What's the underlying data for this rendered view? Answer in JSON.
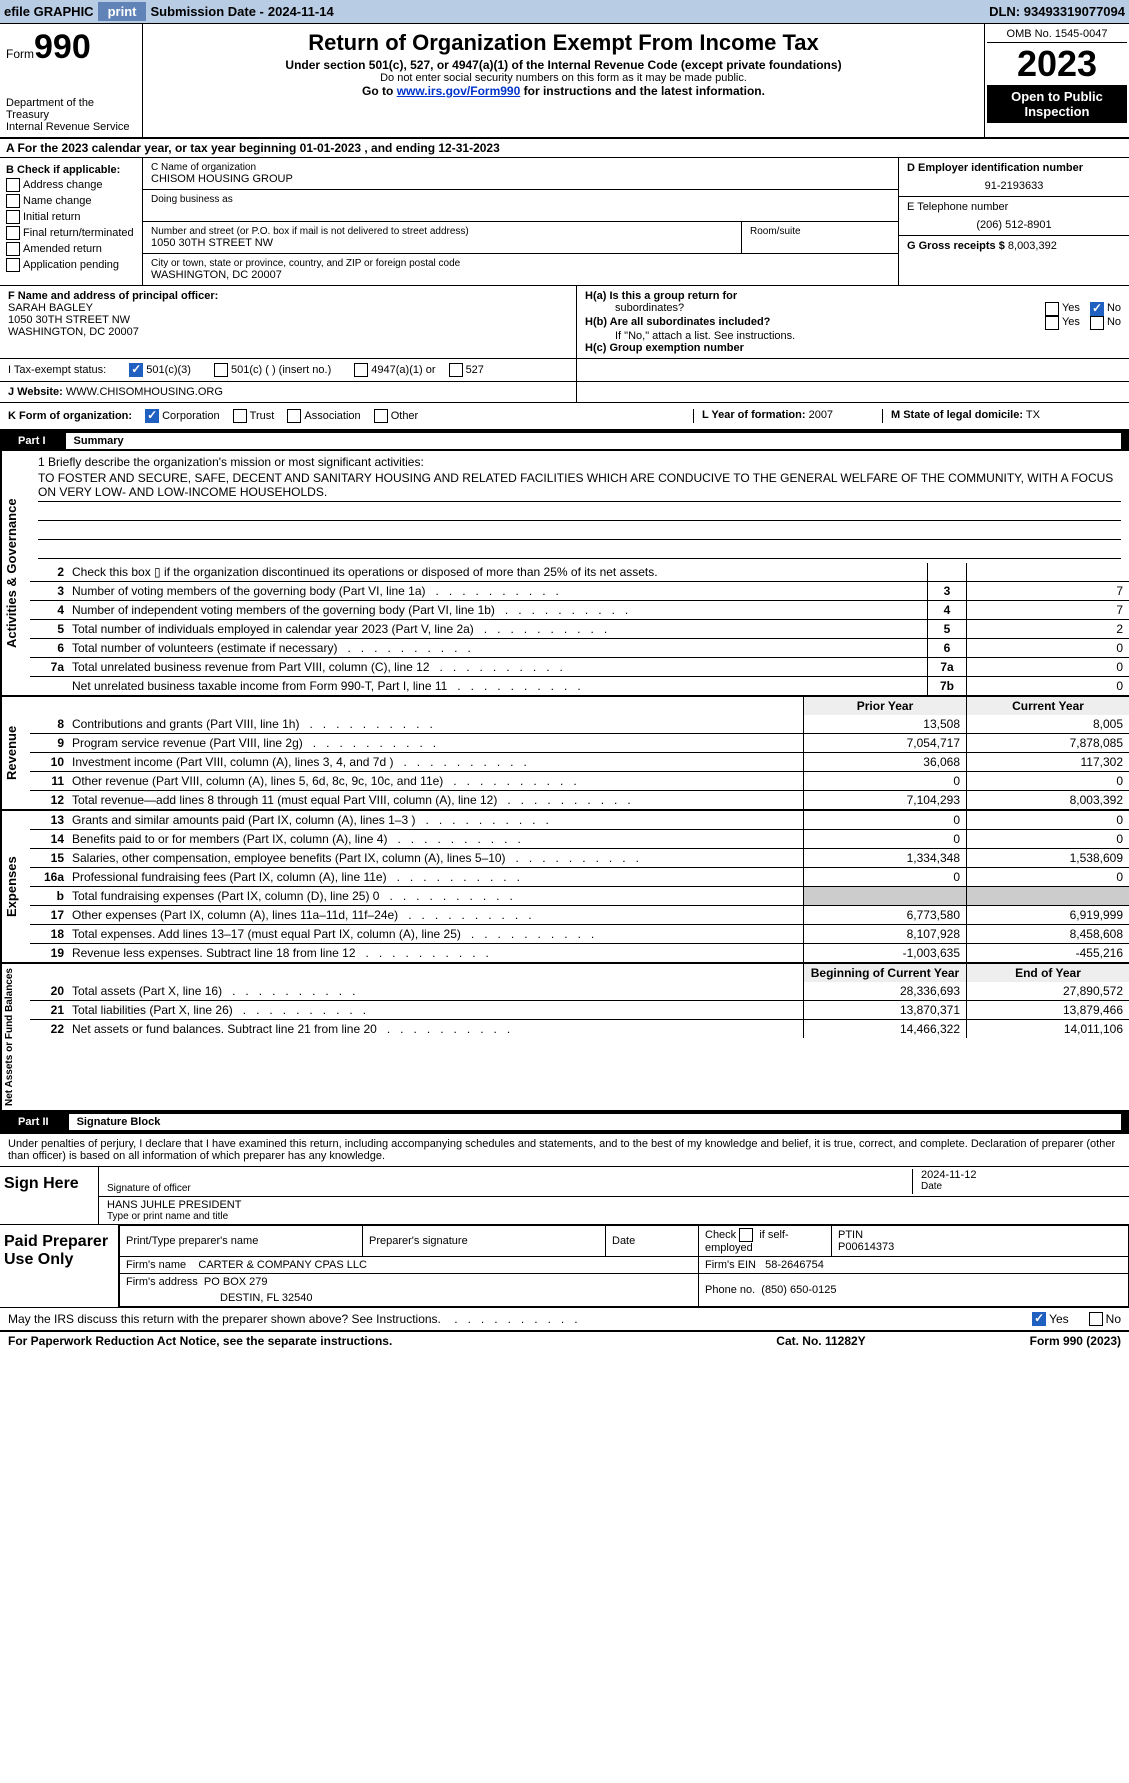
{
  "topbar": {
    "efile_label": "efile GRAPHIC",
    "print_btn": "print",
    "sub_date_label": "Submission Date -",
    "sub_date": "2024-11-14",
    "dln_label": "DLN:",
    "dln": "93493319077094"
  },
  "header": {
    "form_prefix": "Form",
    "form_number": "990",
    "dept": "Department of the Treasury\nInternal Revenue Service",
    "title": "Return of Organization Exempt From Income Tax",
    "sub1": "Under section 501(c), 527, or 4947(a)(1) of the Internal Revenue Code (except private foundations)",
    "sub2": "Do not enter social security numbers on this form as it may be made public.",
    "sub3_pre": "Go to ",
    "sub3_link": "www.irs.gov/Form990",
    "sub3_post": " for instructions and the latest information.",
    "omb": "OMB No. 1545-0047",
    "year": "2023",
    "inspection": "Open to Public Inspection"
  },
  "row_a": "A  For the 2023 calendar year, or tax year beginning 01-01-2023   , and ending 12-31-2023",
  "col_b": {
    "title": "B Check if applicable:",
    "items": [
      "Address change",
      "Name change",
      "Initial return",
      "Final return/terminated",
      "Amended return",
      "Application pending"
    ]
  },
  "col_c": {
    "name_label": "C Name of organization",
    "name": "CHISOM HOUSING GROUP",
    "dba_label": "Doing business as",
    "street_label": "Number and street (or P.O. box if mail is not delivered to street address)",
    "street": "1050 30TH STREET NW",
    "room_label": "Room/suite",
    "city_label": "City or town, state or province, country, and ZIP or foreign postal code",
    "city": "WASHINGTON, DC  20007"
  },
  "col_d": {
    "ein_label": "D Employer identification number",
    "ein": "91-2193633",
    "tel_label": "E Telephone number",
    "tel": "(206) 512-8901",
    "gross_label": "G Gross receipts $",
    "gross": "8,003,392"
  },
  "row_f": {
    "label": "F  Name and address of principal officer:",
    "name": "SARAH BAGLEY",
    "addr1": "1050 30TH STREET NW",
    "addr2": "WASHINGTON, DC  20007"
  },
  "row_h": {
    "ha_label": "H(a)  Is this a group return for",
    "ha_label2": "subordinates?",
    "hb_label": "H(b)  Are all subordinates included?",
    "hb_note": "If \"No,\" attach a list. See instructions.",
    "hc_label": "H(c)  Group exemption number",
    "yes": "Yes",
    "no": "No"
  },
  "row_i": {
    "label": "I    Tax-exempt status:",
    "opt1": "501(c)(3)",
    "opt2": "501(c) (   ) (insert no.)",
    "opt3": "4947(a)(1) or",
    "opt4": "527"
  },
  "row_j": {
    "label": "J   Website: ",
    "value": "WWW.CHISOMHOUSING.ORG"
  },
  "row_k": {
    "label": "K Form of organization:",
    "opts": [
      "Corporation",
      "Trust",
      "Association",
      "Other"
    ],
    "l_label": "L Year of formation:",
    "l_val": "2007",
    "m_label": "M State of legal domicile:",
    "m_val": "TX"
  },
  "part1": {
    "tag": "Part I",
    "title": "Summary"
  },
  "mission": {
    "label": "1  Briefly describe the organization's mission or most significant activities:",
    "text": "TO FOSTER AND SECURE, SAFE, DECENT AND SANITARY HOUSING AND RELATED FACILITIES WHICH ARE CONDUCIVE TO THE GENERAL WELFARE OF THE COMMUNITY, WITH A FOCUS ON VERY LOW- AND LOW-INCOME HOUSEHOLDS."
  },
  "gov_rows": [
    {
      "n": "2",
      "label": "Check this box ▯ if the organization discontinued its operations or disposed of more than 25% of its net assets.",
      "cn": "",
      "v": ""
    },
    {
      "n": "3",
      "label": "Number of voting members of the governing body (Part VI, line 1a)",
      "cn": "3",
      "v": "7"
    },
    {
      "n": "4",
      "label": "Number of independent voting members of the governing body (Part VI, line 1b)",
      "cn": "4",
      "v": "7"
    },
    {
      "n": "5",
      "label": "Total number of individuals employed in calendar year 2023 (Part V, line 2a)",
      "cn": "5",
      "v": "2"
    },
    {
      "n": "6",
      "label": "Total number of volunteers (estimate if necessary)",
      "cn": "6",
      "v": "0"
    },
    {
      "n": "7a",
      "label": "Total unrelated business revenue from Part VIII, column (C), line 12",
      "cn": "7a",
      "v": "0"
    },
    {
      "n": "",
      "label": "Net unrelated business taxable income from Form 990-T, Part I, line 11",
      "cn": "7b",
      "v": "0"
    }
  ],
  "rev_header": {
    "prior": "Prior Year",
    "curr": "Current Year"
  },
  "rev_rows": [
    {
      "n": "8",
      "label": "Contributions and grants (Part VIII, line 1h)",
      "p": "13,508",
      "c": "8,005"
    },
    {
      "n": "9",
      "label": "Program service revenue (Part VIII, line 2g)",
      "p": "7,054,717",
      "c": "7,878,085"
    },
    {
      "n": "10",
      "label": "Investment income (Part VIII, column (A), lines 3, 4, and 7d )",
      "p": "36,068",
      "c": "117,302"
    },
    {
      "n": "11",
      "label": "Other revenue (Part VIII, column (A), lines 5, 6d, 8c, 9c, 10c, and 11e)",
      "p": "0",
      "c": "0"
    },
    {
      "n": "12",
      "label": "Total revenue—add lines 8 through 11 (must equal Part VIII, column (A), line 12)",
      "p": "7,104,293",
      "c": "8,003,392"
    }
  ],
  "exp_rows": [
    {
      "n": "13",
      "label": "Grants and similar amounts paid (Part IX, column (A), lines 1–3 )",
      "p": "0",
      "c": "0"
    },
    {
      "n": "14",
      "label": "Benefits paid to or for members (Part IX, column (A), line 4)",
      "p": "0",
      "c": "0"
    },
    {
      "n": "15",
      "label": "Salaries, other compensation, employee benefits (Part IX, column (A), lines 5–10)",
      "p": "1,334,348",
      "c": "1,538,609"
    },
    {
      "n": "16a",
      "label": "Professional fundraising fees (Part IX, column (A), line 11e)",
      "p": "0",
      "c": "0"
    },
    {
      "n": "b",
      "label": "Total fundraising expenses (Part IX, column (D), line 25) 0",
      "p": "",
      "c": "",
      "shaded": true
    },
    {
      "n": "17",
      "label": "Other expenses (Part IX, column (A), lines 11a–11d, 11f–24e)",
      "p": "6,773,580",
      "c": "6,919,999"
    },
    {
      "n": "18",
      "label": "Total expenses. Add lines 13–17 (must equal Part IX, column (A), line 25)",
      "p": "8,107,928",
      "c": "8,458,608"
    },
    {
      "n": "19",
      "label": "Revenue less expenses. Subtract line 18 from line 12",
      "p": "-1,003,635",
      "c": "-455,216"
    }
  ],
  "net_header": {
    "prior": "Beginning of Current Year",
    "curr": "End of Year"
  },
  "net_rows": [
    {
      "n": "20",
      "label": "Total assets (Part X, line 16)",
      "p": "28,336,693",
      "c": "27,890,572"
    },
    {
      "n": "21",
      "label": "Total liabilities (Part X, line 26)",
      "p": "13,870,371",
      "c": "13,879,466"
    },
    {
      "n": "22",
      "label": "Net assets or fund balances. Subtract line 21 from line 20",
      "p": "14,466,322",
      "c": "14,011,106"
    }
  ],
  "part2": {
    "tag": "Part II",
    "title": "Signature Block"
  },
  "declaration": "Under penalties of perjury, I declare that I have examined this return, including accompanying schedules and statements, and to the best of my knowledge and belief, it is true, correct, and complete. Declaration of preparer (other than officer) is based on all information of which preparer has any knowledge.",
  "sign": {
    "label": "Sign Here",
    "sig_label": "Signature of officer",
    "date_label": "Date",
    "date": "2024-11-12",
    "name": "HANS JUHLE  PRESIDENT",
    "name_label": "Type or print name and title"
  },
  "paid": {
    "label": "Paid Preparer Use Only",
    "h1": "Print/Type preparer's name",
    "h2": "Preparer's signature",
    "h3": "Date",
    "h4_pre": "Check",
    "h4_post": "if self-employed",
    "h5": "PTIN",
    "ptin": "P00614373",
    "firm_name_label": "Firm's name",
    "firm_name": "CARTER & COMPANY CPAS LLC",
    "firm_ein_label": "Firm's EIN",
    "firm_ein": "58-2646754",
    "firm_addr_label": "Firm's address",
    "firm_addr": "PO BOX 279",
    "firm_addr2": "DESTIN, FL  32540",
    "phone_label": "Phone no.",
    "phone": "(850) 650-0125"
  },
  "disclose": {
    "text": "May the IRS discuss this return with the preparer shown above? See Instructions.",
    "yes": "Yes",
    "no": "No"
  },
  "footer": {
    "left": "For Paperwork Reduction Act Notice, see the separate instructions.",
    "mid": "Cat. No. 11282Y",
    "right": "Form 990 (2023)"
  },
  "rotated_labels": {
    "gov": "Activities & Governance",
    "rev": "Revenue",
    "exp": "Expenses",
    "net": "Net Assets or Fund Balances"
  }
}
